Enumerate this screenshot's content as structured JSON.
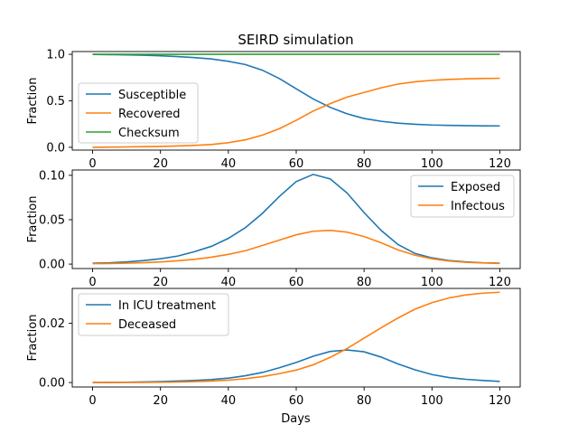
{
  "chart_data": [
    {
      "type": "line",
      "title": "SEIRD simulation",
      "xlabel": "",
      "ylabel": "Fraction",
      "xlim": [
        -6,
        126
      ],
      "ylim": [
        -0.03,
        1.03
      ],
      "xticks": [
        0,
        20,
        40,
        60,
        80,
        100,
        120
      ],
      "yticks": [
        0.0,
        0.5,
        1.0
      ],
      "ytick_labels": [
        "0.0",
        "0.5",
        "1.0"
      ],
      "legend_position": "center-left",
      "x": [
        0,
        5,
        10,
        15,
        20,
        25,
        30,
        35,
        40,
        45,
        50,
        55,
        60,
        65,
        70,
        75,
        80,
        85,
        90,
        95,
        100,
        105,
        110,
        115,
        120
      ],
      "series": [
        {
          "name": "Susceptible",
          "color": "#1f77b4",
          "values": [
            0.999,
            0.997,
            0.994,
            0.99,
            0.984,
            0.976,
            0.965,
            0.95,
            0.925,
            0.89,
            0.83,
            0.74,
            0.63,
            0.52,
            0.43,
            0.36,
            0.31,
            0.28,
            0.26,
            0.248,
            0.24,
            0.236,
            0.233,
            0.231,
            0.23
          ]
        },
        {
          "name": "Recovered",
          "color": "#ff7f0e",
          "values": [
            0.0,
            0.002,
            0.004,
            0.007,
            0.01,
            0.014,
            0.02,
            0.03,
            0.05,
            0.08,
            0.13,
            0.2,
            0.29,
            0.39,
            0.47,
            0.54,
            0.59,
            0.64,
            0.68,
            0.705,
            0.72,
            0.73,
            0.736,
            0.74,
            0.742
          ]
        },
        {
          "name": "Checksum",
          "color": "#2ca02c",
          "values": [
            1.0,
            1.0,
            1.0,
            1.0,
            1.0,
            1.0,
            1.0,
            1.0,
            1.0,
            1.0,
            1.0,
            1.0,
            1.0,
            1.0,
            1.0,
            1.0,
            1.0,
            1.0,
            1.0,
            1.0,
            1.0,
            1.0,
            1.0,
            1.0,
            1.0
          ]
        }
      ]
    },
    {
      "type": "line",
      "title": "",
      "xlabel": "",
      "ylabel": "Fraction",
      "xlim": [
        -6,
        126
      ],
      "ylim": [
        -0.005,
        0.106
      ],
      "xticks": [
        0,
        20,
        40,
        60,
        80,
        100,
        120
      ],
      "yticks": [
        0.0,
        0.05,
        0.1
      ],
      "ytick_labels": [
        "0.00",
        "0.05",
        "0.10"
      ],
      "legend_position": "upper-right",
      "x": [
        0,
        5,
        10,
        15,
        20,
        25,
        30,
        35,
        40,
        45,
        50,
        55,
        60,
        65,
        70,
        75,
        80,
        85,
        90,
        95,
        100,
        105,
        110,
        115,
        120
      ],
      "series": [
        {
          "name": "Exposed",
          "color": "#1f77b4",
          "values": [
            0.001,
            0.0015,
            0.0025,
            0.004,
            0.006,
            0.009,
            0.014,
            0.02,
            0.029,
            0.041,
            0.057,
            0.076,
            0.093,
            0.101,
            0.096,
            0.08,
            0.058,
            0.038,
            0.022,
            0.012,
            0.007,
            0.004,
            0.0025,
            0.0015,
            0.001
          ]
        },
        {
          "name": "Infectous",
          "color": "#ff7f0e",
          "values": [
            0.0005,
            0.0007,
            0.001,
            0.0016,
            0.0025,
            0.0037,
            0.0054,
            0.0078,
            0.011,
            0.015,
            0.021,
            0.027,
            0.033,
            0.037,
            0.038,
            0.036,
            0.031,
            0.024,
            0.016,
            0.01,
            0.006,
            0.0035,
            0.002,
            0.0013,
            0.0008
          ]
        }
      ]
    },
    {
      "type": "line",
      "title": "",
      "xlabel": "Days",
      "ylabel": "Fraction",
      "xlim": [
        -6,
        126
      ],
      "ylim": [
        -0.0015,
        0.0318
      ],
      "xticks": [
        0,
        20,
        40,
        60,
        80,
        100,
        120
      ],
      "yticks": [
        0.0,
        0.02
      ],
      "ytick_labels": [
        "0.00",
        "0.02"
      ],
      "legend_position": "upper-left",
      "x": [
        0,
        5,
        10,
        15,
        20,
        25,
        30,
        35,
        40,
        45,
        50,
        55,
        60,
        65,
        70,
        75,
        80,
        85,
        90,
        95,
        100,
        105,
        110,
        115,
        120
      ],
      "series": [
        {
          "name": "In ICU treatment",
          "color": "#1f77b4",
          "values": [
            0.0,
            5e-05,
            0.0001,
            0.0002,
            0.0003,
            0.0005,
            0.0007,
            0.001,
            0.0015,
            0.0023,
            0.0034,
            0.005,
            0.0068,
            0.0089,
            0.0105,
            0.011,
            0.0104,
            0.0086,
            0.0063,
            0.0043,
            0.0027,
            0.0017,
            0.0011,
            0.0007,
            0.0004
          ]
        },
        {
          "name": "Deceased",
          "color": "#ff7f0e",
          "values": [
            0.0,
            1e-05,
            3e-05,
            6e-05,
            0.0001,
            0.00018,
            0.0003,
            0.0005,
            0.0008,
            0.0013,
            0.002,
            0.003,
            0.0042,
            0.006,
            0.0085,
            0.0115,
            0.015,
            0.0185,
            0.0218,
            0.0248,
            0.027,
            0.0286,
            0.0296,
            0.0302,
            0.0305
          ]
        }
      ]
    }
  ]
}
